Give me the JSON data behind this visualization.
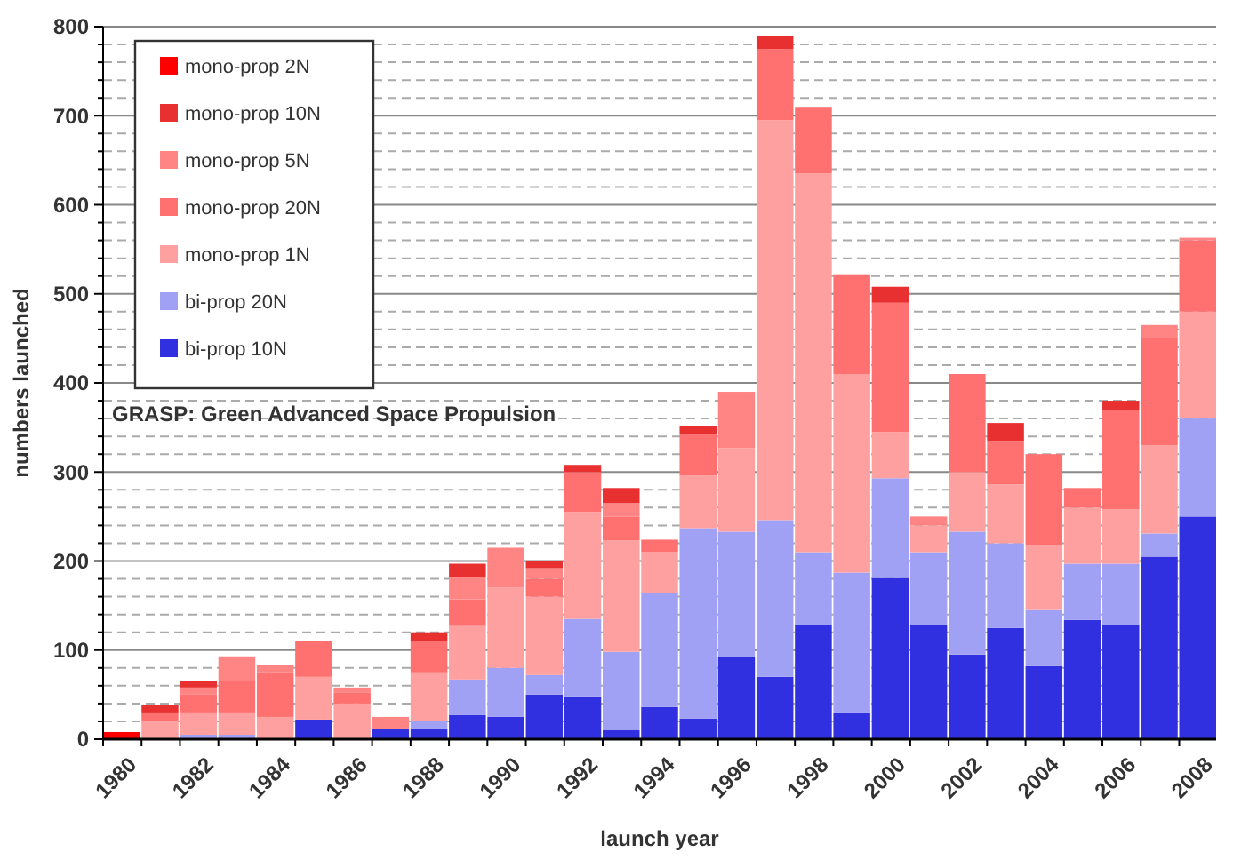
{
  "chart_data": {
    "type": "bar",
    "stacked": true,
    "xlabel": "launch year",
    "ylabel": "numbers launched",
    "categories": [
      "1980",
      null,
      "1982",
      null,
      "1984",
      null,
      "1986",
      null,
      "1988",
      null,
      "1990",
      null,
      "1992",
      null,
      "1994",
      null,
      "1996",
      null,
      "1998",
      null,
      "2000",
      null,
      "2002",
      null,
      "2004",
      null,
      "2006",
      null,
      "2008"
    ],
    "series": [
      {
        "name": "bi-prop 10N",
        "color": "#3030e0",
        "values": [
          0,
          0,
          0,
          0,
          0,
          22,
          0,
          12,
          12,
          27,
          25,
          50,
          48,
          10,
          36,
          23,
          92,
          70,
          128,
          30,
          181,
          128,
          95,
          125,
          82,
          134,
          128,
          205,
          250
        ]
      },
      {
        "name": "bi-prop 20N",
        "color": "#a0a0f4",
        "values": [
          0,
          0,
          5,
          5,
          0,
          0,
          0,
          0,
          8,
          40,
          55,
          22,
          87,
          88,
          128,
          214,
          141,
          176,
          82,
          157,
          112,
          82,
          138,
          95,
          63,
          63,
          69,
          26,
          110
        ]
      },
      {
        "name": "mono-prop 1N",
        "color": "#ffa0a0",
        "values": [
          0,
          20,
          25,
          25,
          25,
          48,
          40,
          0,
          55,
          60,
          90,
          88,
          120,
          125,
          46,
          59,
          94,
          449,
          425,
          223,
          52,
          30,
          67,
          66,
          72,
          63,
          61,
          99,
          120
        ]
      },
      {
        "name": "mono-prop 20N",
        "color": "#ff7070",
        "values": [
          0,
          10,
          20,
          35,
          50,
          40,
          12,
          0,
          35,
          30,
          0,
          20,
          45,
          27,
          14,
          46,
          0,
          80,
          75,
          112,
          145,
          0,
          110,
          49,
          103,
          22,
          112,
          120,
          80
        ]
      },
      {
        "name": "mono-prop 5N",
        "color": "#ff8585",
        "values": [
          0,
          0,
          8,
          28,
          8,
          0,
          6,
          13,
          0,
          25,
          45,
          12,
          0,
          15,
          0,
          0,
          63,
          0,
          0,
          0,
          0,
          10,
          0,
          0,
          0,
          0,
          0,
          15,
          3
        ]
      },
      {
        "name": "mono-prop 10N",
        "color": "#e83030",
        "values": [
          0,
          8,
          7,
          0,
          0,
          0,
          0,
          0,
          10,
          15,
          0,
          8,
          8,
          17,
          0,
          10,
          0,
          15,
          0,
          0,
          18,
          0,
          0,
          20,
          0,
          0,
          10,
          0,
          0
        ]
      },
      {
        "name": "mono-prop 2N",
        "color": "#ff0000",
        "values": [
          8,
          0,
          0,
          0,
          0,
          0,
          0,
          0,
          0,
          0,
          0,
          0,
          0,
          0,
          0,
          0,
          0,
          0,
          0,
          0,
          0,
          0,
          0,
          0,
          0,
          0,
          0,
          0,
          0
        ]
      }
    ],
    "ylim": [
      0,
      800
    ],
    "yticks": [
      0,
      {
        "value": 20,
        "label": null
      },
      {
        "value": 40,
        "label": null
      },
      {
        "value": 60,
        "label": null
      },
      {
        "value": 80,
        "label": null
      },
      100,
      {
        "value": 120,
        "label": null
      },
      {
        "value": 140,
        "label": null
      },
      {
        "value": 160,
        "label": null
      },
      {
        "value": 180,
        "label": null
      },
      200,
      {
        "value": 220,
        "label": null
      },
      {
        "value": 240,
        "label": null
      },
      {
        "value": 260,
        "label": null
      },
      {
        "value": 280,
        "label": null
      },
      300,
      {
        "value": 320,
        "label": null
      },
      {
        "value": 340,
        "label": null
      },
      {
        "value": 360,
        "label": null
      },
      {
        "value": 380,
        "label": null
      },
      400,
      {
        "value": 420,
        "label": null
      },
      {
        "value": 440,
        "label": null
      },
      {
        "value": 460,
        "label": null
      },
      {
        "value": 480,
        "label": null
      },
      500,
      {
        "value": 520,
        "label": null
      },
      {
        "value": 540,
        "label": null
      },
      {
        "value": 560,
        "label": null
      },
      {
        "value": 580,
        "label": null
      },
      600,
      {
        "value": 620,
        "label": null
      },
      {
        "value": 640,
        "label": null
      },
      {
        "value": 660,
        "label": null
      },
      {
        "value": 680,
        "label": null
      },
      700,
      {
        "value": 720,
        "label": null
      },
      {
        "value": 740,
        "label": null
      },
      {
        "value": 760,
        "label": null
      },
      {
        "value": 780,
        "label": null
      },
      800
    ],
    "grid": "y",
    "legend": "top left",
    "annotations": [
      "GRASP: Green Advanced Space Propulsion"
    ]
  }
}
